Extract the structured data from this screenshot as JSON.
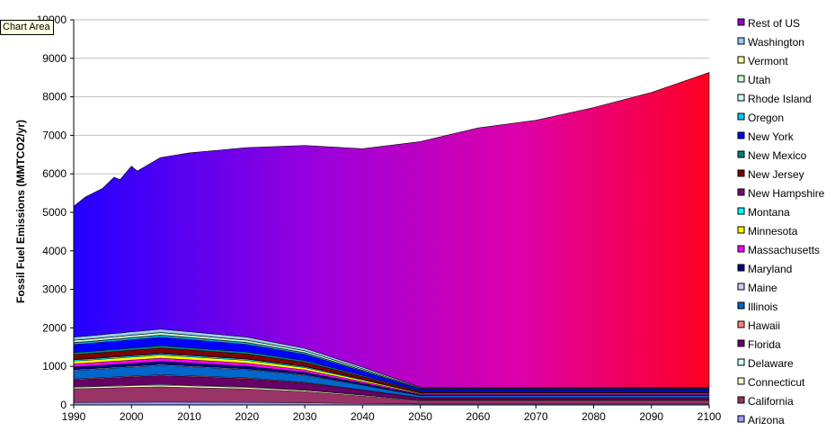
{
  "tooltip": "Chart Area",
  "chart_data": {
    "type": "area",
    "stacked": true,
    "ylabel": "Fossil Fuel Emissions (MMTCO2/yr)",
    "xlabel": "",
    "xlim": [
      1990,
      2100
    ],
    "ylim": [
      0,
      10000
    ],
    "x_ticks": [
      1990,
      2000,
      2010,
      2020,
      2030,
      2040,
      2050,
      2060,
      2070,
      2080,
      2090,
      2100
    ],
    "y_ticks": [
      0,
      1000,
      2000,
      3000,
      4000,
      5000,
      6000,
      7000,
      8000,
      9000,
      10000
    ],
    "grid": "horizontal",
    "legend_position": "right",
    "x": [
      1990,
      1992,
      1995,
      1997,
      1998,
      2000,
      2001,
      2003,
      2005,
      2010,
      2020,
      2030,
      2040,
      2050,
      2060,
      2070,
      2080,
      2090,
      2100
    ],
    "series": [
      {
        "name": "Arizona",
        "color": "#9999ff",
        "values": [
          60,
          62,
          65,
          67,
          68,
          70,
          71,
          73,
          75,
          72,
          65,
          55,
          40,
          25,
          25,
          25,
          25,
          25,
          25
        ]
      },
      {
        "name": "California",
        "color": "#993366",
        "values": [
          360,
          365,
          372,
          378,
          380,
          385,
          388,
          392,
          395,
          380,
          350,
          290,
          190,
          90,
          90,
          90,
          90,
          90,
          90
        ]
      },
      {
        "name": "Connecticut",
        "color": "#ffffcc",
        "values": [
          40,
          40,
          41,
          42,
          42,
          43,
          43,
          44,
          45,
          43,
          40,
          33,
          22,
          10,
          10,
          10,
          10,
          10,
          10
        ]
      },
      {
        "name": "Delaware",
        "color": "#ccffff",
        "values": [
          15,
          15,
          15,
          16,
          16,
          16,
          16,
          16,
          17,
          16,
          15,
          12,
          8,
          4,
          4,
          4,
          4,
          4,
          4
        ]
      },
      {
        "name": "Florida",
        "color": "#660066",
        "values": [
          180,
          185,
          195,
          202,
          205,
          212,
          215,
          222,
          230,
          225,
          210,
          180,
          120,
          55,
          55,
          55,
          55,
          55,
          55
        ]
      },
      {
        "name": "Hawaii",
        "color": "#ff8080",
        "values": [
          20,
          20,
          21,
          21,
          21,
          22,
          22,
          22,
          23,
          22,
          20,
          17,
          11,
          5,
          5,
          5,
          5,
          5,
          5
        ]
      },
      {
        "name": "Illinois",
        "color": "#0066cc",
        "values": [
          220,
          222,
          226,
          229,
          230,
          233,
          234,
          237,
          240,
          232,
          215,
          180,
          120,
          55,
          55,
          55,
          55,
          55,
          55
        ]
      },
      {
        "name": "Maine",
        "color": "#ccccff",
        "values": [
          20,
          20,
          21,
          21,
          21,
          22,
          22,
          22,
          23,
          22,
          20,
          17,
          11,
          5,
          5,
          5,
          5,
          5,
          5
        ]
      },
      {
        "name": "Maryland",
        "color": "#000080",
        "values": [
          75,
          76,
          77,
          78,
          78,
          79,
          80,
          81,
          82,
          79,
          73,
          61,
          40,
          18,
          18,
          18,
          18,
          18,
          18
        ]
      },
      {
        "name": "Massachusetts",
        "color": "#ff00ff",
        "values": [
          80,
          80,
          81,
          82,
          82,
          83,
          83,
          84,
          85,
          82,
          76,
          63,
          42,
          20,
          20,
          20,
          20,
          20,
          20
        ]
      },
      {
        "name": "Minnesota",
        "color": "#ffff00",
        "values": [
          70,
          71,
          73,
          75,
          75,
          77,
          77,
          79,
          80,
          78,
          72,
          60,
          40,
          18,
          18,
          18,
          18,
          18,
          18
        ]
      },
      {
        "name": "Montana",
        "color": "#00ffff",
        "values": [
          30,
          30,
          31,
          31,
          31,
          32,
          32,
          32,
          33,
          32,
          30,
          25,
          17,
          8,
          8,
          8,
          8,
          8,
          8
        ]
      },
      {
        "name": "New Hampshire",
        "color": "#800080",
        "values": [
          18,
          18,
          19,
          19,
          19,
          20,
          20,
          20,
          21,
          20,
          18,
          15,
          10,
          5,
          5,
          5,
          5,
          5,
          5
        ]
      },
      {
        "name": "New Jersey",
        "color": "#800000",
        "values": [
          120,
          121,
          123,
          124,
          125,
          127,
          127,
          128,
          130,
          126,
          117,
          98,
          65,
          30,
          30,
          30,
          30,
          30,
          30
        ]
      },
      {
        "name": "New Mexico",
        "color": "#008080",
        "values": [
          55,
          56,
          57,
          58,
          58,
          59,
          59,
          60,
          60,
          58,
          54,
          45,
          30,
          14,
          14,
          14,
          14,
          14,
          14
        ]
      },
      {
        "name": "New York",
        "color": "#0000ff",
        "values": [
          210,
          211,
          213,
          214,
          215,
          217,
          218,
          219,
          220,
          213,
          197,
          165,
          110,
          50,
          50,
          50,
          50,
          50,
          50
        ]
      },
      {
        "name": "Oregon",
        "color": "#00ccff",
        "values": [
          40,
          40,
          41,
          42,
          42,
          43,
          43,
          44,
          45,
          43,
          40,
          33,
          22,
          10,
          10,
          10,
          10,
          10,
          10
        ]
      },
      {
        "name": "Rhode Island",
        "color": "#ccffff",
        "values": [
          11,
          11,
          11,
          11,
          11,
          12,
          12,
          12,
          12,
          12,
          11,
          9,
          6,
          3,
          3,
          3,
          3,
          3,
          3
        ]
      },
      {
        "name": "Utah",
        "color": "#ccffcc",
        "values": [
          55,
          56,
          57,
          58,
          58,
          59,
          59,
          60,
          61,
          59,
          55,
          46,
          31,
          14,
          14,
          14,
          14,
          14,
          14
        ]
      },
      {
        "name": "Vermont",
        "color": "#ffff99",
        "values": [
          6,
          6,
          6,
          6,
          6,
          6,
          6,
          6,
          6,
          6,
          6,
          5,
          3,
          2,
          2,
          2,
          2,
          2,
          2
        ]
      },
      {
        "name": "Washington",
        "color": "#99ccff",
        "values": [
          80,
          81,
          82,
          83,
          83,
          84,
          85,
          86,
          86,
          83,
          77,
          64,
          43,
          20,
          20,
          20,
          20,
          20,
          20
        ]
      },
      {
        "name": "Rest of US",
        "color": "#9900cc",
        "values": [
          3389,
          3611,
          3794,
          4056,
          3980,
          4298,
          4160,
          4308,
          4453,
          4642,
          4918,
          5264,
          5670,
          6375,
          6730,
          6930,
          7260,
          7650,
          8170
        ]
      }
    ],
    "totals_note": "",
    "gradient_colors": [
      "#2200ff",
      "#9900dd",
      "#dd00aa",
      "#ff0022"
    ]
  }
}
